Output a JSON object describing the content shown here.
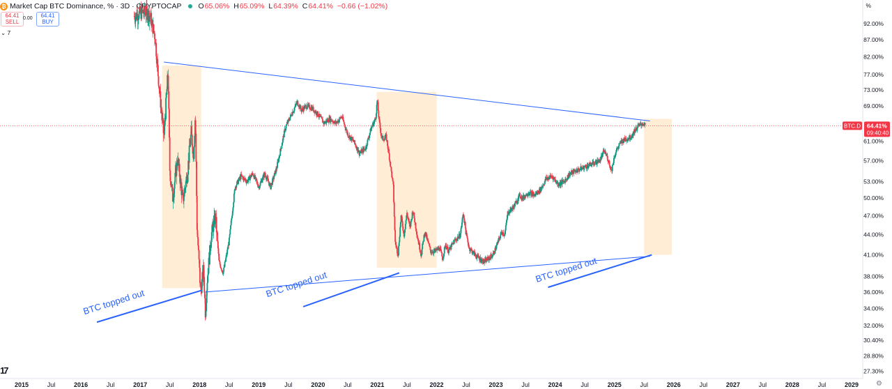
{
  "header": {
    "title": "Market Cap BTC Dominance, %",
    "interval": "3D",
    "exchange": "CRYPTOCAP",
    "separator": "·",
    "ohlc": [
      {
        "label": "O",
        "value": "65.06%"
      },
      {
        "label": "H",
        "value": "65.09%"
      },
      {
        "label": "L",
        "value": "64.39%"
      },
      {
        "label": "C",
        "value": "64.41%"
      },
      {
        "label": "",
        "value": "−0.66 (−1.02%)"
      }
    ]
  },
  "trade": {
    "sell_price": "64.41",
    "sell_label": "SELL",
    "buy_price": "64.41",
    "buy_label": "BUY",
    "spread": "0.00"
  },
  "indicators_toggle": "⌄ 7",
  "scale_button": "%",
  "logo": "17",
  "settings_icon": "⚙",
  "colors": {
    "up": "#089981",
    "down": "#f23645",
    "trend": "#2962ff",
    "annotation": "#2962ff",
    "highlight": "#ffe0b2",
    "price_tag": "#f23645"
  },
  "chart_data": {
    "type": "candlestick",
    "symbol": "BTC.D",
    "last_price": "64.41%",
    "countdown": "09:40:40",
    "x_start": 2015.0,
    "x_end": 2029.0,
    "y_scale": "log",
    "y_range": [
      26.6,
      100
    ],
    "x_ticks": [
      {
        "label": "2015",
        "x": 2015.0
      },
      {
        "label": "Jul",
        "x": 2015.5
      },
      {
        "label": "2016",
        "x": 2016.0
      },
      {
        "label": "Jul",
        "x": 2016.5
      },
      {
        "label": "2017",
        "x": 2017.0
      },
      {
        "label": "Jul",
        "x": 2017.5
      },
      {
        "label": "2018",
        "x": 2018.0
      },
      {
        "label": "Jul",
        "x": 2018.5
      },
      {
        "label": "2019",
        "x": 2019.0
      },
      {
        "label": "Jul",
        "x": 2019.5
      },
      {
        "label": "2020",
        "x": 2020.0
      },
      {
        "label": "Jul",
        "x": 2020.5
      },
      {
        "label": "2021",
        "x": 2021.0
      },
      {
        "label": "Jul",
        "x": 2021.5
      },
      {
        "label": "2022",
        "x": 2022.0
      },
      {
        "label": "Jul",
        "x": 2022.5
      },
      {
        "label": "2023",
        "x": 2023.0
      },
      {
        "label": "Jul",
        "x": 2023.5
      },
      {
        "label": "2024",
        "x": 2024.0
      },
      {
        "label": "Jul",
        "x": 2024.5
      },
      {
        "label": "2025",
        "x": 2025.0
      },
      {
        "label": "Jul",
        "x": 2025.5
      },
      {
        "label": "2026",
        "x": 2026.0
      },
      {
        "label": "Jul",
        "x": 2026.5
      },
      {
        "label": "2027",
        "x": 2027.0
      },
      {
        "label": "Jul",
        "x": 2027.5
      },
      {
        "label": "2028",
        "x": 2028.0
      },
      {
        "label": "Jul",
        "x": 2028.5
      },
      {
        "label": "2029",
        "x": 2029.0
      }
    ],
    "y_ticks": [
      {
        "label": "92.00%",
        "v": 92
      },
      {
        "label": "87.00%",
        "v": 87
      },
      {
        "label": "82.00%",
        "v": 82
      },
      {
        "label": "77.00%",
        "v": 77
      },
      {
        "label": "73.00%",
        "v": 73
      },
      {
        "label": "69.00%",
        "v": 69
      },
      {
        "label": "61.00%",
        "v": 61
      },
      {
        "label": "57.00%",
        "v": 57
      },
      {
        "label": "53.00%",
        "v": 53
      },
      {
        "label": "50.00%",
        "v": 50
      },
      {
        "label": "47.00%",
        "v": 47
      },
      {
        "label": "44.00%",
        "v": 44
      },
      {
        "label": "41.00%",
        "v": 41
      },
      {
        "label": "38.00%",
        "v": 38
      },
      {
        "label": "36.00%",
        "v": 36
      },
      {
        "label": "34.00%",
        "v": 34
      },
      {
        "label": "32.00%",
        "v": 32
      },
      {
        "label": "30.40%",
        "v": 30.4
      },
      {
        "label": "28.80%",
        "v": 28.8
      },
      {
        "label": "27.30%",
        "v": 27.3
      }
    ],
    "price_path": [
      [
        2016.9,
        94.5
      ],
      [
        2017.0,
        95.5
      ],
      [
        2017.1,
        96.0
      ],
      [
        2017.17,
        94.5
      ],
      [
        2017.25,
        88.0
      ],
      [
        2017.33,
        72.0
      ],
      [
        2017.4,
        62.0
      ],
      [
        2017.47,
        78.0
      ],
      [
        2017.5,
        55.0
      ],
      [
        2017.55,
        50.0
      ],
      [
        2017.63,
        57.5
      ],
      [
        2017.72,
        49.5
      ],
      [
        2017.8,
        55.0
      ],
      [
        2017.86,
        63.0
      ],
      [
        2017.9,
        58.0
      ],
      [
        2017.93,
        67.0
      ],
      [
        2017.96,
        45.0
      ],
      [
        2018.02,
        36.0
      ],
      [
        2018.07,
        39.0
      ],
      [
        2018.1,
        33.5
      ],
      [
        2018.13,
        37.5
      ],
      [
        2018.2,
        44.0
      ],
      [
        2018.27,
        47.0
      ],
      [
        2018.33,
        40.0
      ],
      [
        2018.4,
        38.5
      ],
      [
        2018.5,
        43.0
      ],
      [
        2018.6,
        52.0
      ],
      [
        2018.7,
        54.0
      ],
      [
        2018.8,
        53.0
      ],
      [
        2018.9,
        54.5
      ],
      [
        2019.0,
        52.0
      ],
      [
        2019.1,
        54.5
      ],
      [
        2019.2,
        52.0
      ],
      [
        2019.3,
        55.5
      ],
      [
        2019.45,
        64.0
      ],
      [
        2019.55,
        67.0
      ],
      [
        2019.65,
        70.0
      ],
      [
        2019.72,
        68.0
      ],
      [
        2019.8,
        69.0
      ],
      [
        2019.9,
        68.5
      ],
      [
        2020.0,
        67.0
      ],
      [
        2020.1,
        65.0
      ],
      [
        2020.2,
        66.0
      ],
      [
        2020.3,
        65.0
      ],
      [
        2020.4,
        66.5
      ],
      [
        2020.5,
        62.5
      ],
      [
        2020.6,
        61.0
      ],
      [
        2020.7,
        58.5
      ],
      [
        2020.8,
        59.5
      ],
      [
        2020.9,
        64.0
      ],
      [
        2020.97,
        66.0
      ],
      [
        2021.0,
        70.5
      ],
      [
        2021.03,
        65.5
      ],
      [
        2021.07,
        62.0
      ],
      [
        2021.1,
        61.5
      ],
      [
        2021.15,
        62.0
      ],
      [
        2021.2,
        58.0
      ],
      [
        2021.27,
        52.0
      ],
      [
        2021.3,
        43.0
      ],
      [
        2021.35,
        41.0
      ],
      [
        2021.4,
        47.0
      ],
      [
        2021.45,
        44.0
      ],
      [
        2021.5,
        47.5
      ],
      [
        2021.55,
        45.0
      ],
      [
        2021.6,
        48.0
      ],
      [
        2021.68,
        43.5
      ],
      [
        2021.74,
        41.0
      ],
      [
        2021.8,
        44.5
      ],
      [
        2021.85,
        43.0
      ],
      [
        2021.9,
        41.5
      ],
      [
        2021.97,
        41.5
      ],
      [
        2022.05,
        42.0
      ],
      [
        2022.1,
        40.5
      ],
      [
        2022.15,
        42.5
      ],
      [
        2022.2,
        41.5
      ],
      [
        2022.3,
        43.0
      ],
      [
        2022.4,
        44.0
      ],
      [
        2022.45,
        47.5
      ],
      [
        2022.5,
        44.0
      ],
      [
        2022.55,
        42.0
      ],
      [
        2022.65,
        41.0
      ],
      [
        2022.72,
        40.5
      ],
      [
        2022.8,
        40.0
      ],
      [
        2022.88,
        40.5
      ],
      [
        2022.95,
        41.0
      ],
      [
        2023.0,
        42.0
      ],
      [
        2023.1,
        44.5
      ],
      [
        2023.15,
        44.0
      ],
      [
        2023.2,
        47.5
      ],
      [
        2023.3,
        48.5
      ],
      [
        2023.4,
        50.5
      ],
      [
        2023.45,
        50.0
      ],
      [
        2023.55,
        51.0
      ],
      [
        2023.65,
        50.5
      ],
      [
        2023.75,
        51.5
      ],
      [
        2023.85,
        53.5
      ],
      [
        2023.95,
        54.0
      ],
      [
        2024.05,
        52.5
      ],
      [
        2024.15,
        53.0
      ],
      [
        2024.25,
        54.5
      ],
      [
        2024.35,
        55.0
      ],
      [
        2024.45,
        55.5
      ],
      [
        2024.55,
        56.0
      ],
      [
        2024.65,
        56.5
      ],
      [
        2024.75,
        57.0
      ],
      [
        2024.83,
        59.0
      ],
      [
        2024.9,
        57.0
      ],
      [
        2024.95,
        55.0
      ],
      [
        2025.0,
        58.0
      ],
      [
        2025.05,
        59.5
      ],
      [
        2025.12,
        61.0
      ],
      [
        2025.2,
        61.5
      ],
      [
        2025.28,
        62.0
      ],
      [
        2025.35,
        63.5
      ],
      [
        2025.42,
        64.5
      ],
      [
        2025.48,
        65.0
      ],
      [
        2025.52,
        64.41
      ]
    ],
    "trendlines": [
      {
        "from": [
          2017.4,
          80.5
        ],
        "to": [
          2025.6,
          65.5
        ]
      },
      {
        "from": [
          2018.1,
          36.0
        ],
        "to": [
          2025.6,
          40.8
        ]
      }
    ],
    "highlight_zones": [
      {
        "x0": 2017.37,
        "x1": 2018.03,
        "y0": 36.5,
        "y1": 79.5
      },
      {
        "x0": 2020.99,
        "x1": 2022.0,
        "y0": 39.2,
        "y1": 72.5
      },
      {
        "x0": 2025.5,
        "x1": 2025.97,
        "y0": 41.0,
        "y1": 66.0
      }
    ],
    "annotations": [
      {
        "text": "BTC topped out",
        "x": 2016.57,
        "y": 34.4,
        "angle": -17.6
      },
      {
        "text": "BTC topped out",
        "x": 2019.65,
        "y": 36.6,
        "angle": -18.2
      },
      {
        "text": "BTC topped out",
        "x": 2024.2,
        "y": 38.5,
        "angle": -17.6
      }
    ],
    "annotation_arrows": [
      {
        "from": [
          2016.27,
          32.4
        ],
        "to": [
          2018.03,
          36.2
        ]
      },
      {
        "from": [
          2019.75,
          34.2
        ],
        "to": [
          2021.37,
          38.5
        ]
      },
      {
        "from": [
          2023.88,
          36.6
        ],
        "to": [
          2025.63,
          41.0
        ]
      }
    ]
  }
}
